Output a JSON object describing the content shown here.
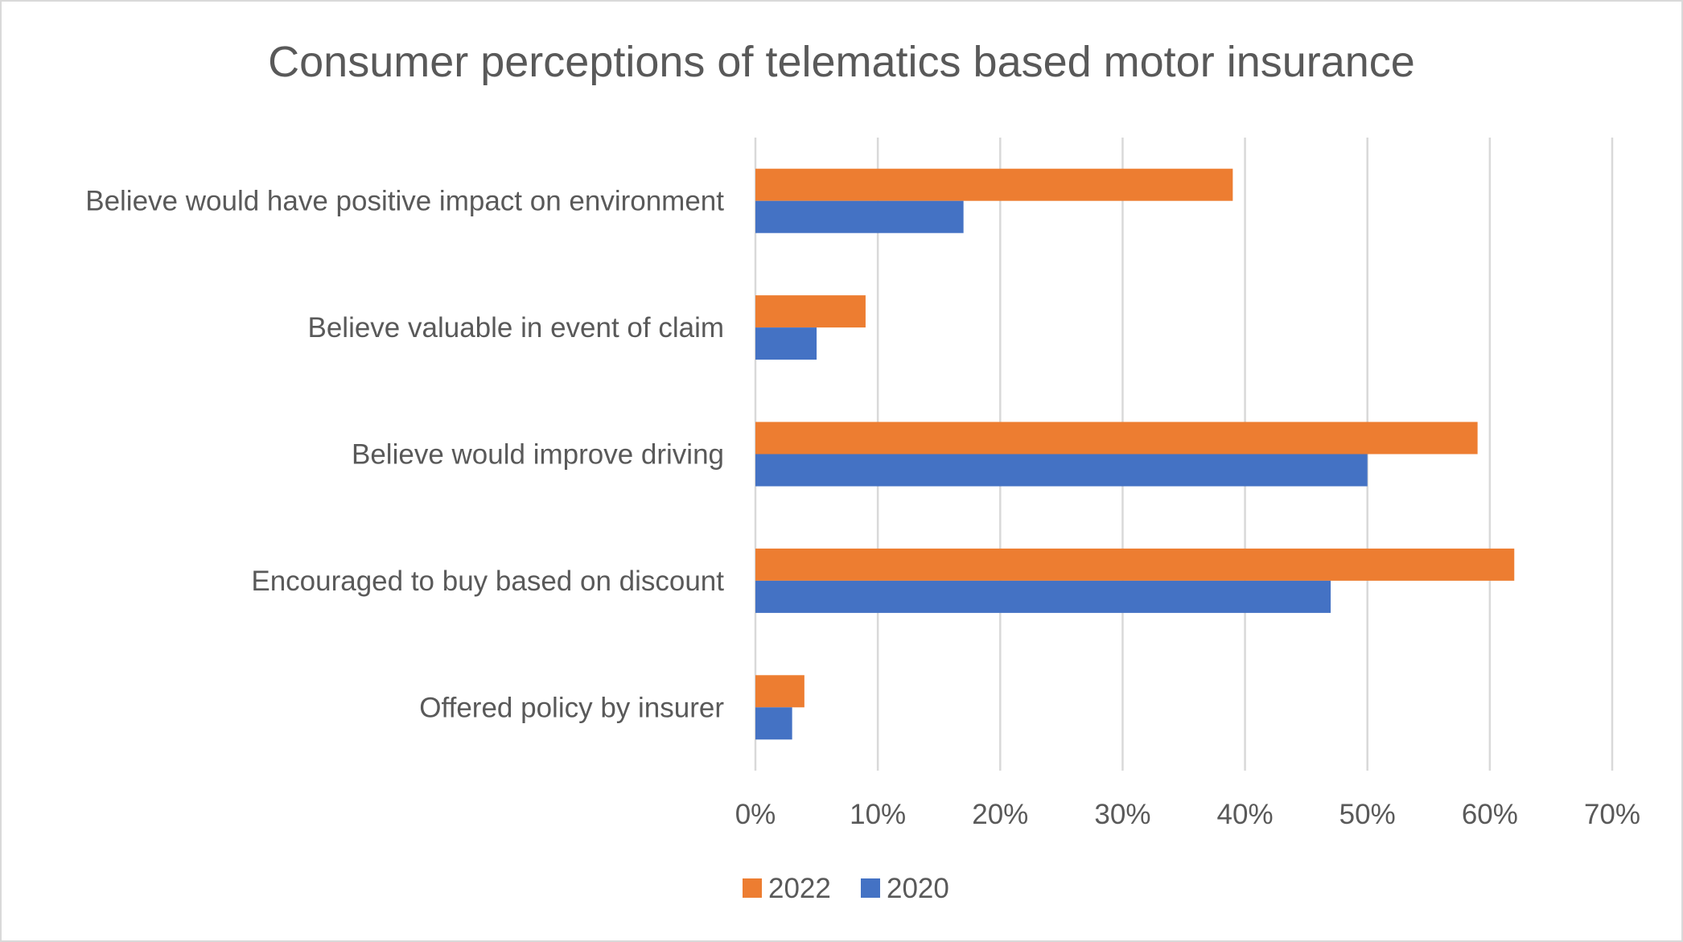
{
  "chart_data": {
    "type": "bar",
    "orientation": "horizontal",
    "title": "Consumer perceptions of telematics based motor insurance",
    "categories": [
      "Believe would have positive impact on environment",
      "Believe valuable in event of claim",
      "Believe would improve driving",
      "Encouraged to buy based on discount",
      "Offered policy by insurer"
    ],
    "series": [
      {
        "name": "2022",
        "color": "#ED7D31",
        "values": [
          39,
          9,
          59,
          62,
          4
        ]
      },
      {
        "name": "2020",
        "color": "#4472C4",
        "values": [
          17,
          5,
          50,
          47,
          3
        ]
      }
    ],
    "xlim": [
      0,
      70
    ],
    "xticks": [
      "0%",
      "10%",
      "20%",
      "30%",
      "40%",
      "50%",
      "60%",
      "70%"
    ],
    "unit": "%",
    "grid": "vertical",
    "legend": "bottom"
  }
}
